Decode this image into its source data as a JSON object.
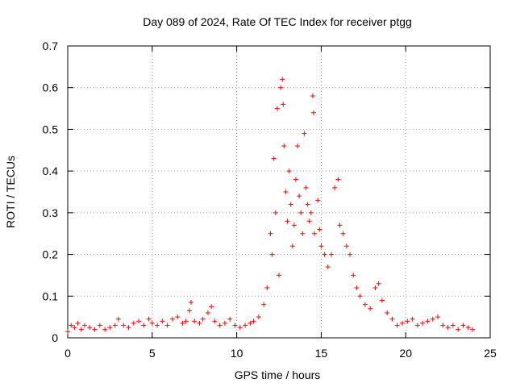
{
  "chart_data": {
    "type": "scatter",
    "title": "Day 089 of 2024, Rate Of TEC Index for receiver ptgg",
    "xlabel": "GPS time / hours",
    "ylabel": "ROTI / TECUs",
    "xlim": [
      0,
      25
    ],
    "ylim": [
      0,
      0.7
    ],
    "xticks": [
      "0",
      "5",
      "10",
      "15",
      "20",
      "25"
    ],
    "yticks": [
      "0",
      "0.1",
      "0.2",
      "0.3",
      "0.4",
      "0.5",
      "0.6",
      "0.7"
    ],
    "grid": true,
    "marker": "+",
    "color": "#ff0000",
    "series": [
      {
        "points": [
          [
            0.0,
            0.015
          ],
          [
            0.2,
            0.03
          ],
          [
            0.4,
            0.025
          ],
          [
            0.6,
            0.035
          ],
          [
            0.8,
            0.02
          ],
          [
            1.0,
            0.03
          ],
          [
            1.3,
            0.025
          ],
          [
            1.6,
            0.02
          ],
          [
            1.9,
            0.03
          ],
          [
            2.2,
            0.02
          ],
          [
            2.5,
            0.025
          ],
          [
            2.8,
            0.03
          ],
          [
            3.0,
            0.045
          ],
          [
            3.3,
            0.03
          ],
          [
            3.6,
            0.025
          ],
          [
            3.9,
            0.035
          ],
          [
            4.2,
            0.04
          ],
          [
            4.5,
            0.03
          ],
          [
            4.8,
            0.045
          ],
          [
            5.0,
            0.035
          ],
          [
            5.3,
            0.03
          ],
          [
            5.6,
            0.04
          ],
          [
            5.9,
            0.03
          ],
          [
            6.2,
            0.045
          ],
          [
            6.5,
            0.05
          ],
          [
            6.8,
            0.035
          ],
          [
            7.0,
            0.04
          ],
          [
            7.2,
            0.065
          ],
          [
            7.3,
            0.085
          ],
          [
            7.5,
            0.04
          ],
          [
            7.8,
            0.035
          ],
          [
            8.0,
            0.045
          ],
          [
            8.3,
            0.06
          ],
          [
            8.5,
            0.075
          ],
          [
            8.7,
            0.04
          ],
          [
            9.0,
            0.03
          ],
          [
            9.3,
            0.035
          ],
          [
            9.6,
            0.045
          ],
          [
            9.9,
            0.03
          ],
          [
            10.2,
            0.025
          ],
          [
            10.5,
            0.03
          ],
          [
            10.8,
            0.035
          ],
          [
            11.0,
            0.04
          ],
          [
            11.3,
            0.05
          ],
          [
            11.6,
            0.08
          ],
          [
            11.8,
            0.12
          ],
          [
            12.0,
            0.25
          ],
          [
            12.1,
            0.2
          ],
          [
            12.2,
            0.43
          ],
          [
            12.3,
            0.3
          ],
          [
            12.4,
            0.55
          ],
          [
            12.5,
            0.15
          ],
          [
            12.6,
            0.6
          ],
          [
            12.7,
            0.62
          ],
          [
            12.75,
            0.56
          ],
          [
            12.8,
            0.46
          ],
          [
            12.9,
            0.35
          ],
          [
            13.0,
            0.28
          ],
          [
            13.1,
            0.4
          ],
          [
            13.2,
            0.32
          ],
          [
            13.3,
            0.22
          ],
          [
            13.4,
            0.27
          ],
          [
            13.5,
            0.38
          ],
          [
            13.6,
            0.46
          ],
          [
            13.7,
            0.34
          ],
          [
            13.8,
            0.3
          ],
          [
            13.9,
            0.25
          ],
          [
            14.0,
            0.49
          ],
          [
            14.1,
            0.36
          ],
          [
            14.2,
            0.32
          ],
          [
            14.3,
            0.28
          ],
          [
            14.4,
            0.3
          ],
          [
            14.5,
            0.58
          ],
          [
            14.55,
            0.54
          ],
          [
            14.6,
            0.25
          ],
          [
            14.8,
            0.33
          ],
          [
            14.9,
            0.26
          ],
          [
            15.0,
            0.22
          ],
          [
            15.2,
            0.2
          ],
          [
            15.4,
            0.17
          ],
          [
            15.6,
            0.2
          ],
          [
            15.8,
            0.36
          ],
          [
            16.0,
            0.38
          ],
          [
            16.1,
            0.27
          ],
          [
            16.3,
            0.25
          ],
          [
            16.5,
            0.22
          ],
          [
            16.7,
            0.2
          ],
          [
            16.9,
            0.15
          ],
          [
            17.1,
            0.12
          ],
          [
            17.3,
            0.1
          ],
          [
            17.6,
            0.08
          ],
          [
            17.9,
            0.07
          ],
          [
            18.2,
            0.12
          ],
          [
            18.4,
            0.13
          ],
          [
            18.6,
            0.09
          ],
          [
            18.9,
            0.06
          ],
          [
            19.2,
            0.045
          ],
          [
            19.5,
            0.03
          ],
          [
            19.8,
            0.035
          ],
          [
            20.1,
            0.04
          ],
          [
            20.4,
            0.045
          ],
          [
            20.7,
            0.03
          ],
          [
            21.0,
            0.035
          ],
          [
            21.3,
            0.04
          ],
          [
            21.6,
            0.045
          ],
          [
            21.9,
            0.05
          ],
          [
            22.2,
            0.03
          ],
          [
            22.5,
            0.025
          ],
          [
            22.8,
            0.03
          ],
          [
            23.1,
            0.02
          ],
          [
            23.4,
            0.03
          ],
          [
            23.7,
            0.025
          ],
          [
            23.95,
            0.02
          ]
        ]
      }
    ]
  }
}
